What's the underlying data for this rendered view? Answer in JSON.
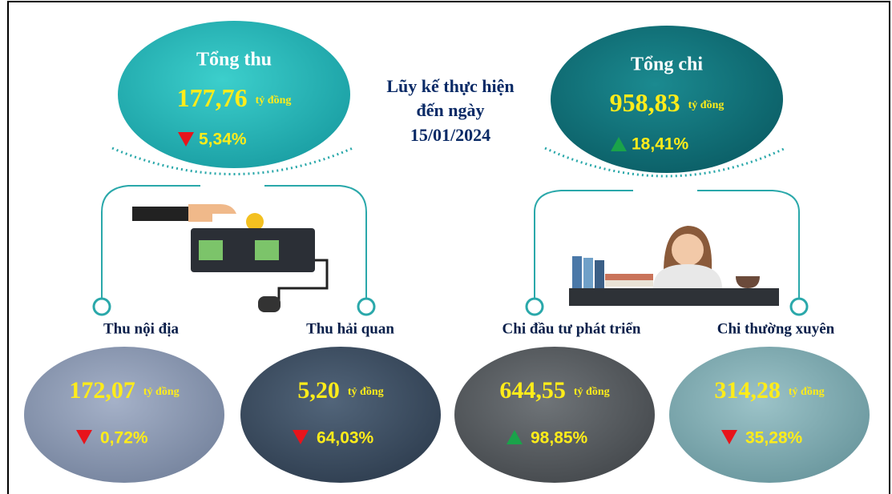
{
  "center": {
    "lines": [
      "Lũy kế thực hiện",
      "đến ngày",
      "15/01/2024"
    ]
  },
  "summary": [
    {
      "title": "Tổng thu",
      "amount": "177,76",
      "unit": "tỷ đồng",
      "change": "5,34%",
      "arrow_color": "#e8141b",
      "direction": "down"
    },
    {
      "title": "Tổng chi",
      "amount": "958,83",
      "unit": "tỷ đồng",
      "change": "18,41%",
      "arrow_color": "#1aa34a",
      "direction": "up"
    }
  ],
  "details": [
    {
      "title": "Thu nội địa",
      "amount": "172,07",
      "unit": "tỷ đồng",
      "change": "0,72%",
      "arrow_color": "#e8141b",
      "direction": "down"
    },
    {
      "title": "Thu hải quan",
      "amount": "5,20",
      "unit": "tỷ đồng",
      "change": "64,03%",
      "arrow_color": "#e8141b",
      "direction": "down"
    },
    {
      "title": "Chi đầu tư phát triển",
      "amount": "644,55",
      "unit": "tỷ đồng",
      "change": "98,85%",
      "arrow_color": "#1aa34a",
      "direction": "up"
    },
    {
      "title": "Chi thường xuyên",
      "amount": "314,28",
      "unit": "tỷ đồng",
      "change": "35,28%",
      "arrow_color": "#e8141b",
      "direction": "down"
    }
  ]
}
